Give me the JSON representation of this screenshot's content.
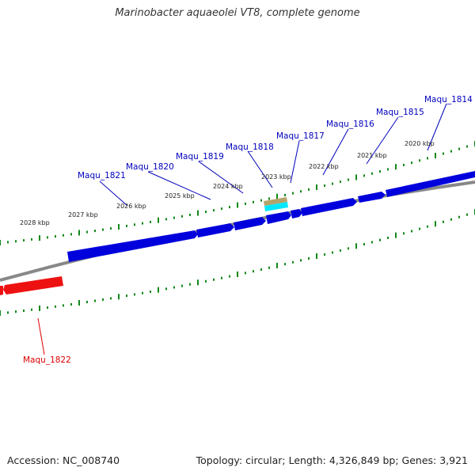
{
  "title": "Marinobacter aquaeolei VT8, complete genome",
  "footer": {
    "accession": "Accession: NC_008740",
    "topology": "Topology: circular; Length: 4,326,849 bp; Genes: 3,921"
  },
  "colors": {
    "forward_gene": "#0000dd",
    "reverse_gene": "#ee1111",
    "backbone": "#888888",
    "ticks": "#11881a",
    "label_forward": "#0000bb",
    "label_reverse": "#dd0000",
    "feature_tan": "#b5a46a",
    "feature_cyan": "#00e8ff"
  },
  "scale_labels": [
    "2020 kbp",
    "2021 kbp",
    "2022 kbp",
    "2023 kbp",
    "2024 kbp",
    "2025 kbp",
    "2026 kbp",
    "2027 kbp",
    "2028 kbp"
  ],
  "gene_labels_forward": [
    "Maqu_1814",
    "Maqu_1815",
    "Maqu_1816",
    "Maqu_1817",
    "Maqu_1818",
    "Maqu_1819",
    "Maqu_1820",
    "Maqu_1821"
  ],
  "gene_labels_reverse": [
    "Maqu_1822"
  ]
}
